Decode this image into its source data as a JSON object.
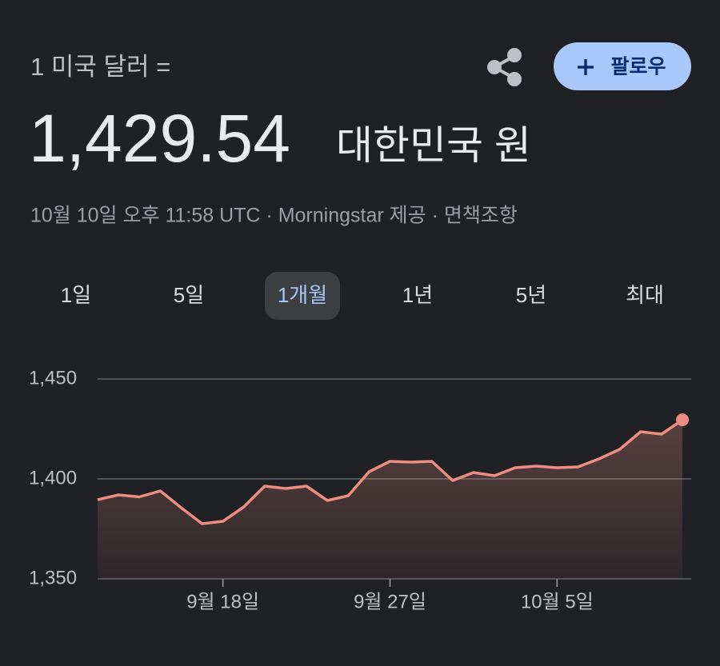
{
  "header": {
    "label": "1 미국 달러 =",
    "follow": "팔로우",
    "value": "1,429.54",
    "currency": "대한민국 원",
    "meta": "10월 10일 오후 11:58 UTC · Morningstar 제공 · 면책조항"
  },
  "tabs": {
    "items": [
      "1일",
      "5일",
      "1개월",
      "1년",
      "5년",
      "최대"
    ],
    "selected": 2
  },
  "chart_data": {
    "type": "area",
    "color": "#ee8e82",
    "categories": [
      null,
      null,
      null,
      null,
      null,
      null,
      "9월 18일",
      null,
      null,
      null,
      null,
      null,
      null,
      null,
      "9월 27일",
      null,
      null,
      null,
      null,
      null,
      null,
      null,
      "10월 5일",
      null,
      null,
      null,
      null,
      null,
      null
    ],
    "values": [
      1389.6,
      1392,
      1391,
      1394,
      1385.6,
      1377.6,
      1378.8,
      1386,
      1396.4,
      1395.2,
      1396.4,
      1389.2,
      1391.6,
      1403.6,
      1408.8,
      1408.4,
      1408.8,
      1399.2,
      1403.2,
      1401.6,
      1405.6,
      1406.4,
      1405.6,
      1406,
      1410,
      1414.8,
      1423.6,
      1422.4,
      1429.54
    ],
    "ylim": [
      1350,
      1450
    ],
    "yticks": [
      {
        "value": 1350,
        "label": "1,350"
      },
      {
        "value": 1400,
        "label": "1,400"
      },
      {
        "value": 1450,
        "label": "1,450"
      }
    ],
    "grid": true
  }
}
